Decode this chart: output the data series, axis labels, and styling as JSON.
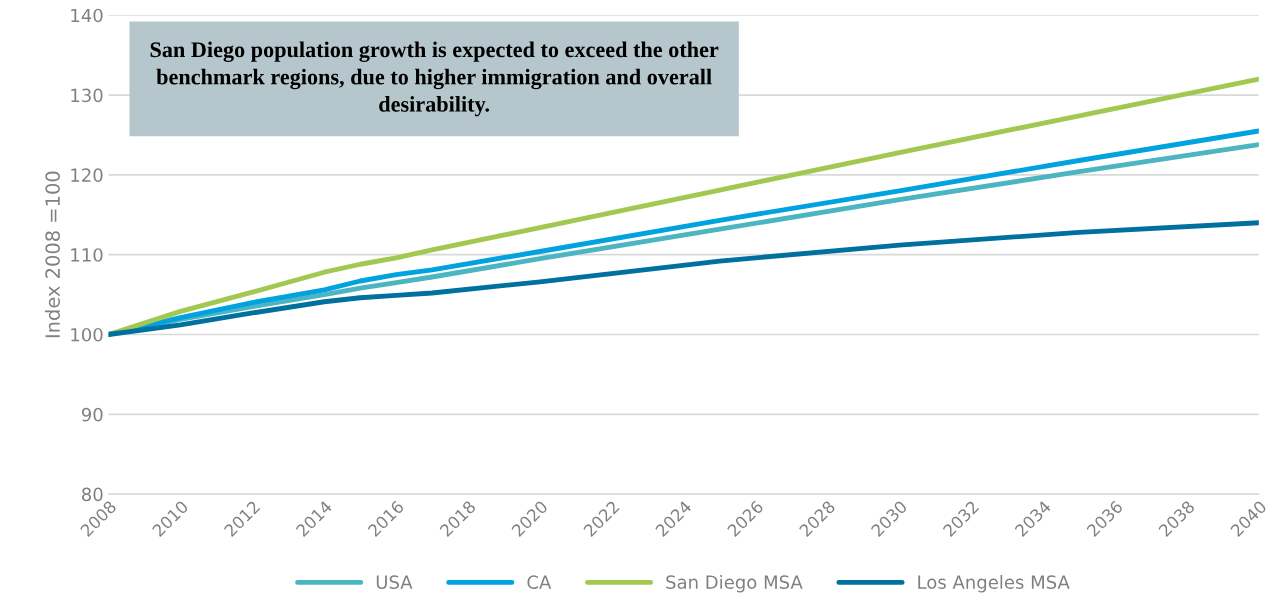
{
  "chart_data": {
    "type": "line",
    "ylabel": "Index 2008 =100",
    "annotations": [
      "San Diego population growth is expected to exceed the other benchmark regions, due to higher immigration and overall desirability."
    ],
    "x": [
      2008,
      2010,
      2012,
      2014,
      2015,
      2016,
      2017,
      2020,
      2025,
      2030,
      2035,
      2040
    ],
    "series": [
      {
        "name": "USA",
        "color": "#4bb5c1",
        "values": [
          100,
          101.9,
          103.5,
          105,
          105.8,
          106.5,
          107.2,
          109.5,
          113.2,
          116.9,
          120.4,
          123.8
        ]
      },
      {
        "name": "CA",
        "color": "#00a3e0",
        "values": [
          100,
          102.1,
          104,
          105.6,
          106.7,
          107.5,
          108.1,
          110.4,
          114.3,
          118,
          121.8,
          125.5
        ]
      },
      {
        "name": "San Diego MSA",
        "color": "#a2c851",
        "values": [
          100,
          102.9,
          105.3,
          107.8,
          108.8,
          109.6,
          110.6,
          113.4,
          118.1,
          122.8,
          127.4,
          132
        ]
      },
      {
        "name": "Los Angeles MSA",
        "color": "#00709f",
        "values": [
          100,
          101.2,
          102.7,
          104.1,
          104.6,
          104.9,
          105.2,
          106.6,
          109.2,
          111.2,
          112.8,
          114
        ]
      }
    ],
    "xlim": [
      2008,
      2040
    ],
    "xticks": [
      2008,
      2010,
      2012,
      2014,
      2016,
      2018,
      2020,
      2022,
      2024,
      2026,
      2028,
      2030,
      2032,
      2034,
      2036,
      2038,
      2040
    ],
    "ylim": [
      80,
      140
    ],
    "yticks": [
      80,
      90,
      100,
      110,
      120,
      130,
      140
    ],
    "grid": "y",
    "legend": "bottom",
    "marker": "none",
    "line_style": "solid"
  }
}
